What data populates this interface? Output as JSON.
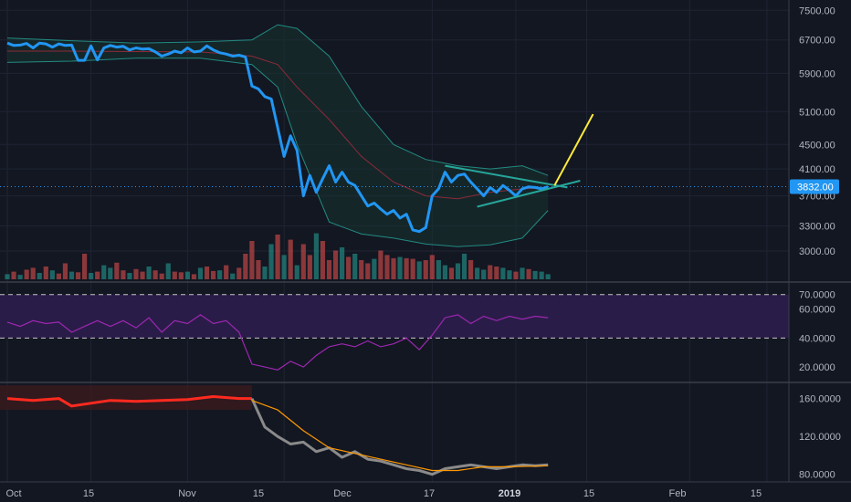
{
  "colors": {
    "background": "#131722",
    "grid": "#1f2433",
    "price_line": "#2196f3",
    "bollinger_band": "#26a69a",
    "bollinger_basis": "#8e2a38",
    "bollinger_fill": "#17332f",
    "volume_up": "#26a69a",
    "volume_down": "#ef5350",
    "rsi_line": "#9c27b0",
    "rsi_band_fill": "#2a1c48",
    "rsi_band_edge": "#c5c5c5",
    "osc_line_grey": "#8a8a8a",
    "osc_line_red": "#ff2a1f",
    "osc_line_orange": "#ff9800",
    "osc_zone_fill": "#3a1a1e",
    "triangle_lines": "#26a69a",
    "projection": "#ffeb3b",
    "current_price_line": "#2196f3",
    "current_price_tag": "#2196f3"
  },
  "axes": {
    "price_ticks": [
      "7500.00",
      "6700.00",
      "5900.00",
      "5100.00",
      "4500.00",
      "4100.00",
      "3700.00",
      "3300.00",
      "3000.00"
    ],
    "current_price": "3832.00",
    "rsi_ticks": [
      "70.0000",
      "60.0000",
      "40.0000",
      "20.0000"
    ],
    "osc_ticks": [
      "160.0000",
      "120.0000",
      "80.0000"
    ],
    "x_ticks": [
      {
        "label": "Oct",
        "bold": false
      },
      {
        "label": "15",
        "bold": false
      },
      {
        "label": "Nov",
        "bold": false
      },
      {
        "label": "15",
        "bold": false
      },
      {
        "label": "Dec",
        "bold": false
      },
      {
        "label": "17",
        "bold": false
      },
      {
        "label": "2019",
        "bold": true
      },
      {
        "label": "15",
        "bold": false
      },
      {
        "label": "Feb",
        "bold": false
      },
      {
        "label": "15",
        "bold": false
      }
    ]
  },
  "chart_data": [
    {
      "type": "line",
      "panel": "price",
      "scale": "log",
      "ylim": [
        2750,
        7800
      ],
      "x_units": "trading days from Oct 1 2018",
      "xlim": [
        0,
        125
      ],
      "current_price": 3832,
      "series": [
        {
          "role": "price",
          "x": [
            0,
            1,
            2,
            3,
            4,
            5,
            6,
            7,
            8,
            9,
            10,
            11,
            12,
            13,
            14,
            15,
            16,
            17,
            18,
            19,
            20,
            21,
            22,
            23,
            24,
            25,
            26,
            27,
            28,
            29,
            30,
            31,
            32,
            33,
            34,
            35,
            36,
            37,
            38,
            39,
            40,
            41,
            42,
            43,
            44,
            45,
            46,
            47,
            48,
            49,
            50,
            51,
            52,
            53,
            54,
            55,
            56,
            57,
            58,
            59,
            60,
            61,
            62,
            63,
            64,
            65,
            66,
            67,
            68,
            69,
            70,
            71,
            72,
            73,
            74,
            75,
            76,
            77,
            78,
            79,
            80,
            81,
            82,
            83,
            84
          ],
          "y": [
            6620,
            6560,
            6570,
            6610,
            6500,
            6620,
            6600,
            6520,
            6600,
            6560,
            6570,
            6200,
            6200,
            6550,
            6210,
            6500,
            6560,
            6520,
            6540,
            6450,
            6500,
            6470,
            6480,
            6400,
            6300,
            6350,
            6420,
            6380,
            6500,
            6400,
            6420,
            6550,
            6450,
            6380,
            6350,
            6300,
            6320,
            6280,
            5620,
            5560,
            5400,
            5350,
            4800,
            4300,
            4650,
            4400,
            3700,
            4000,
            3750,
            3950,
            4150,
            3900,
            4050,
            3900,
            3850,
            3700,
            3560,
            3600,
            3520,
            3450,
            3500,
            3400,
            3450,
            3250,
            3230,
            3280,
            3700,
            3800,
            4050,
            3900,
            4000,
            4020,
            3900,
            3800,
            3700,
            3820,
            3750,
            3850,
            3780,
            3700,
            3800,
            3830,
            3820,
            3800,
            3832
          ]
        },
        {
          "role": "bollinger_upper",
          "x": [
            0,
            10,
            20,
            30,
            38,
            42,
            45,
            50,
            55,
            60,
            65,
            70,
            75,
            80,
            84
          ],
          "y": [
            6750,
            6680,
            6620,
            6650,
            6700,
            7100,
            7000,
            6300,
            5200,
            4500,
            4250,
            4150,
            4100,
            4150,
            4000
          ]
        },
        {
          "role": "bollinger_lower",
          "x": [
            0,
            10,
            20,
            30,
            38,
            42,
            45,
            50,
            55,
            60,
            65,
            70,
            75,
            80,
            84
          ],
          "y": [
            6150,
            6180,
            6250,
            6250,
            6100,
            5600,
            4500,
            3350,
            3200,
            3150,
            3080,
            3050,
            3070,
            3150,
            3500
          ]
        },
        {
          "role": "bollinger_basis",
          "x": [
            0,
            10,
            20,
            30,
            38,
            42,
            45,
            50,
            55,
            60,
            65,
            70,
            75,
            80,
            84
          ],
          "y": [
            6420,
            6420,
            6410,
            6400,
            6300,
            6100,
            5600,
            4950,
            4300,
            3900,
            3700,
            3660,
            3750,
            3800,
            3820
          ]
        },
        {
          "role": "triangle_upper",
          "x": [
            68,
            87
          ],
          "y": [
            4150,
            3820
          ]
        },
        {
          "role": "triangle_lower",
          "x": [
            73,
            89
          ],
          "y": [
            3550,
            3920
          ]
        },
        {
          "role": "projection",
          "x": [
            85,
            91
          ],
          "y": [
            3850,
            5050
          ]
        }
      ]
    },
    {
      "type": "bar",
      "panel": "volume",
      "ylim": [
        0,
        100
      ],
      "values": [
        8,
        12,
        7,
        15,
        18,
        10,
        20,
        14,
        9,
        25,
        12,
        11,
        40,
        10,
        12,
        22,
        18,
        26,
        14,
        10,
        16,
        12,
        20,
        14,
        9,
        25,
        12,
        11,
        12,
        8,
        18,
        20,
        13,
        14,
        22,
        9,
        18,
        40,
        60,
        30,
        20,
        55,
        70,
        38,
        62,
        22,
        55,
        38,
        72,
        60,
        30,
        45,
        50,
        35,
        40,
        30,
        25,
        32,
        45,
        38,
        33,
        35,
        33,
        32,
        28,
        30,
        38,
        30,
        22,
        18,
        25,
        40,
        30,
        18,
        15,
        22,
        20,
        18,
        14,
        12,
        18,
        16,
        13,
        12,
        8
      ],
      "up": [
        1,
        0,
        1,
        0,
        0,
        1,
        0,
        1,
        0,
        0,
        1,
        0,
        0,
        1,
        0,
        1,
        1,
        0,
        0,
        1,
        0,
        0,
        1,
        0,
        0,
        1,
        0,
        0,
        1,
        0,
        1,
        0,
        0,
        1,
        0,
        1,
        0,
        0,
        0,
        0,
        1,
        1,
        0,
        1,
        0,
        1,
        0,
        0,
        1,
        0,
        0,
        0,
        1,
        0,
        1,
        0,
        0,
        1,
        0,
        0,
        0,
        1,
        0,
        0,
        1,
        0,
        0,
        1,
        1,
        0,
        1,
        1,
        0,
        1,
        1,
        0,
        0,
        1,
        1,
        0,
        1,
        0,
        1,
        1,
        1
      ]
    },
    {
      "type": "line",
      "panel": "rsi",
      "ylim": [
        10,
        78
      ],
      "band": [
        40,
        70
      ],
      "x": [
        0,
        2,
        4,
        6,
        8,
        10,
        12,
        14,
        16,
        18,
        20,
        22,
        24,
        26,
        28,
        30,
        32,
        34,
        36,
        38,
        40,
        42,
        44,
        46,
        48,
        50,
        52,
        54,
        56,
        58,
        60,
        62,
        64,
        66,
        68,
        70,
        72,
        74,
        76,
        78,
        80,
        82,
        84
      ],
      "values": [
        51,
        48,
        52,
        50,
        51,
        44,
        48,
        52,
        48,
        52,
        47,
        54,
        44,
        52,
        50,
        56,
        50,
        52,
        44,
        22,
        20,
        18,
        24,
        20,
        28,
        34,
        36,
        34,
        38,
        34,
        36,
        40,
        32,
        42,
        54,
        56,
        50,
        55,
        52,
        55,
        53,
        55,
        54
      ]
    },
    {
      "type": "line",
      "panel": "oscillator",
      "ylim": [
        72,
        176
      ],
      "zone": [
        148,
        174
      ],
      "series": [
        {
          "color_role": "osc_line_red",
          "x": [
            0,
            4,
            8,
            10,
            12,
            16,
            20,
            24,
            28,
            32,
            36,
            38
          ],
          "y": [
            160,
            158,
            160,
            152,
            154,
            158,
            157,
            158,
            159,
            162,
            160,
            160
          ]
        },
        {
          "color_role": "osc_line_grey",
          "x": [
            38,
            40,
            42,
            44,
            46,
            48,
            50,
            52,
            54,
            56,
            58,
            60,
            62,
            64,
            66,
            68,
            70,
            72,
            74,
            76,
            78,
            80,
            82,
            84
          ],
          "y": [
            160,
            130,
            120,
            112,
            114,
            104,
            108,
            98,
            104,
            96,
            94,
            90,
            86,
            84,
            80,
            86,
            88,
            90,
            88,
            86,
            88,
            90,
            89,
            90
          ]
        },
        {
          "color_role": "osc_line_orange",
          "x": [
            38,
            42,
            46,
            50,
            54,
            58,
            62,
            66,
            70,
            74,
            78,
            84
          ],
          "y": [
            158,
            148,
            126,
            108,
            102,
            96,
            90,
            84,
            84,
            88,
            88,
            89
          ]
        }
      ]
    }
  ]
}
